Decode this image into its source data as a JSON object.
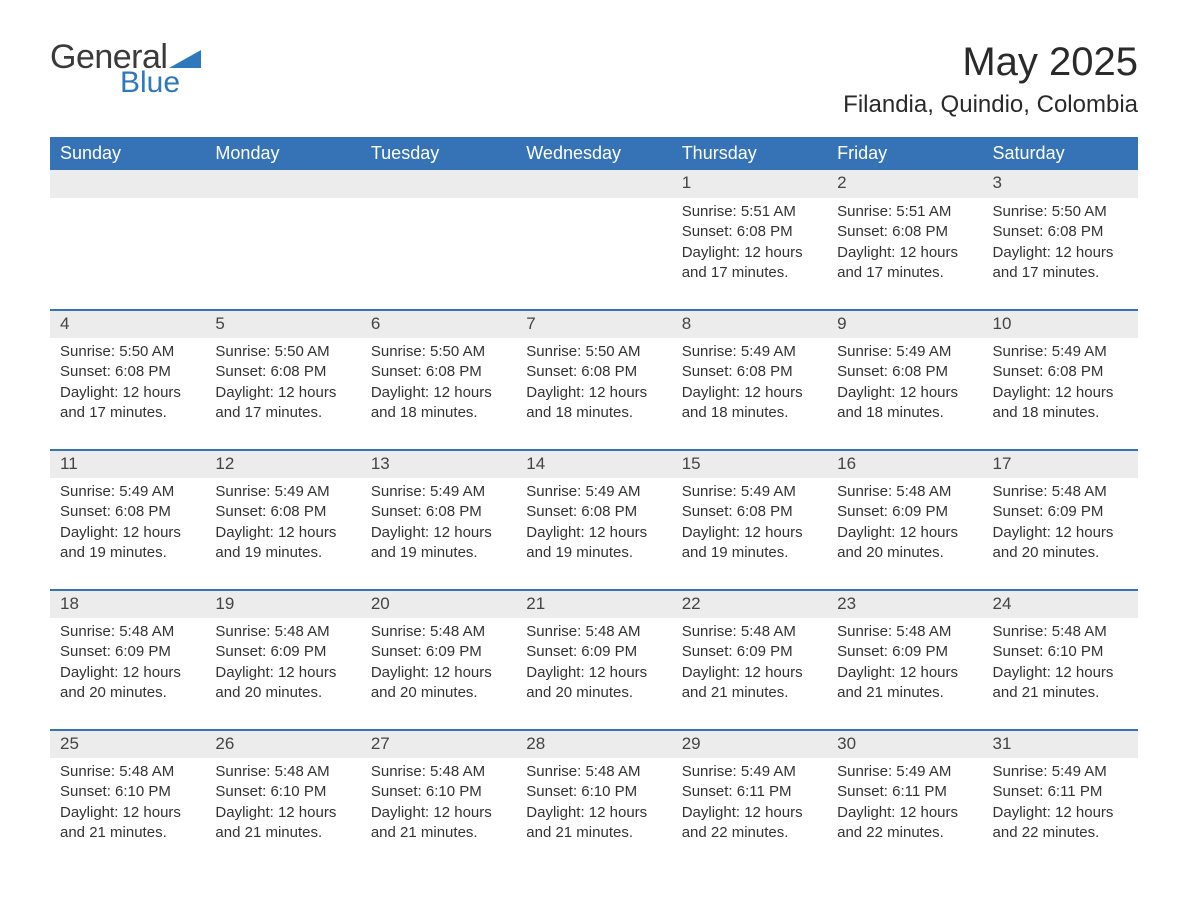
{
  "brand": {
    "word1": "General",
    "word2": "Blue",
    "accent_color": "#2f78bd"
  },
  "title": "May 2025",
  "location": "Filandia, Quindio, Colombia",
  "colors": {
    "header_bg": "#3573b6",
    "header_text": "#ffffff",
    "daynum_bg": "#ececec",
    "row_border": "#3573b6",
    "body_text": "#333333",
    "background": "#ffffff"
  },
  "fonts": {
    "title_size_pt": 40,
    "location_size_pt": 24,
    "weekday_size_pt": 18,
    "daynum_size_pt": 17,
    "detail_size_pt": 15
  },
  "weekdays": [
    "Sunday",
    "Monday",
    "Tuesday",
    "Wednesday",
    "Thursday",
    "Friday",
    "Saturday"
  ],
  "labels": {
    "sunrise": "Sunrise: ",
    "sunset": "Sunset: ",
    "daylight": "Daylight: "
  },
  "weeks": [
    [
      null,
      null,
      null,
      null,
      {
        "n": "1",
        "rise": "5:51 AM",
        "set": "6:08 PM",
        "dl1": "12 hours",
        "dl2": "and 17 minutes."
      },
      {
        "n": "2",
        "rise": "5:51 AM",
        "set": "6:08 PM",
        "dl1": "12 hours",
        "dl2": "and 17 minutes."
      },
      {
        "n": "3",
        "rise": "5:50 AM",
        "set": "6:08 PM",
        "dl1": "12 hours",
        "dl2": "and 17 minutes."
      }
    ],
    [
      {
        "n": "4",
        "rise": "5:50 AM",
        "set": "6:08 PM",
        "dl1": "12 hours",
        "dl2": "and 17 minutes."
      },
      {
        "n": "5",
        "rise": "5:50 AM",
        "set": "6:08 PM",
        "dl1": "12 hours",
        "dl2": "and 17 minutes."
      },
      {
        "n": "6",
        "rise": "5:50 AM",
        "set": "6:08 PM",
        "dl1": "12 hours",
        "dl2": "and 18 minutes."
      },
      {
        "n": "7",
        "rise": "5:50 AM",
        "set": "6:08 PM",
        "dl1": "12 hours",
        "dl2": "and 18 minutes."
      },
      {
        "n": "8",
        "rise": "5:49 AM",
        "set": "6:08 PM",
        "dl1": "12 hours",
        "dl2": "and 18 minutes."
      },
      {
        "n": "9",
        "rise": "5:49 AM",
        "set": "6:08 PM",
        "dl1": "12 hours",
        "dl2": "and 18 minutes."
      },
      {
        "n": "10",
        "rise": "5:49 AM",
        "set": "6:08 PM",
        "dl1": "12 hours",
        "dl2": "and 18 minutes."
      }
    ],
    [
      {
        "n": "11",
        "rise": "5:49 AM",
        "set": "6:08 PM",
        "dl1": "12 hours",
        "dl2": "and 19 minutes."
      },
      {
        "n": "12",
        "rise": "5:49 AM",
        "set": "6:08 PM",
        "dl1": "12 hours",
        "dl2": "and 19 minutes."
      },
      {
        "n": "13",
        "rise": "5:49 AM",
        "set": "6:08 PM",
        "dl1": "12 hours",
        "dl2": "and 19 minutes."
      },
      {
        "n": "14",
        "rise": "5:49 AM",
        "set": "6:08 PM",
        "dl1": "12 hours",
        "dl2": "and 19 minutes."
      },
      {
        "n": "15",
        "rise": "5:49 AM",
        "set": "6:08 PM",
        "dl1": "12 hours",
        "dl2": "and 19 minutes."
      },
      {
        "n": "16",
        "rise": "5:48 AM",
        "set": "6:09 PM",
        "dl1": "12 hours",
        "dl2": "and 20 minutes."
      },
      {
        "n": "17",
        "rise": "5:48 AM",
        "set": "6:09 PM",
        "dl1": "12 hours",
        "dl2": "and 20 minutes."
      }
    ],
    [
      {
        "n": "18",
        "rise": "5:48 AM",
        "set": "6:09 PM",
        "dl1": "12 hours",
        "dl2": "and 20 minutes."
      },
      {
        "n": "19",
        "rise": "5:48 AM",
        "set": "6:09 PM",
        "dl1": "12 hours",
        "dl2": "and 20 minutes."
      },
      {
        "n": "20",
        "rise": "5:48 AM",
        "set": "6:09 PM",
        "dl1": "12 hours",
        "dl2": "and 20 minutes."
      },
      {
        "n": "21",
        "rise": "5:48 AM",
        "set": "6:09 PM",
        "dl1": "12 hours",
        "dl2": "and 20 minutes."
      },
      {
        "n": "22",
        "rise": "5:48 AM",
        "set": "6:09 PM",
        "dl1": "12 hours",
        "dl2": "and 21 minutes."
      },
      {
        "n": "23",
        "rise": "5:48 AM",
        "set": "6:09 PM",
        "dl1": "12 hours",
        "dl2": "and 21 minutes."
      },
      {
        "n": "24",
        "rise": "5:48 AM",
        "set": "6:10 PM",
        "dl1": "12 hours",
        "dl2": "and 21 minutes."
      }
    ],
    [
      {
        "n": "25",
        "rise": "5:48 AM",
        "set": "6:10 PM",
        "dl1": "12 hours",
        "dl2": "and 21 minutes."
      },
      {
        "n": "26",
        "rise": "5:48 AM",
        "set": "6:10 PM",
        "dl1": "12 hours",
        "dl2": "and 21 minutes."
      },
      {
        "n": "27",
        "rise": "5:48 AM",
        "set": "6:10 PM",
        "dl1": "12 hours",
        "dl2": "and 21 minutes."
      },
      {
        "n": "28",
        "rise": "5:48 AM",
        "set": "6:10 PM",
        "dl1": "12 hours",
        "dl2": "and 21 minutes."
      },
      {
        "n": "29",
        "rise": "5:49 AM",
        "set": "6:11 PM",
        "dl1": "12 hours",
        "dl2": "and 22 minutes."
      },
      {
        "n": "30",
        "rise": "5:49 AM",
        "set": "6:11 PM",
        "dl1": "12 hours",
        "dl2": "and 22 minutes."
      },
      {
        "n": "31",
        "rise": "5:49 AM",
        "set": "6:11 PM",
        "dl1": "12 hours",
        "dl2": "and 22 minutes."
      }
    ]
  ]
}
